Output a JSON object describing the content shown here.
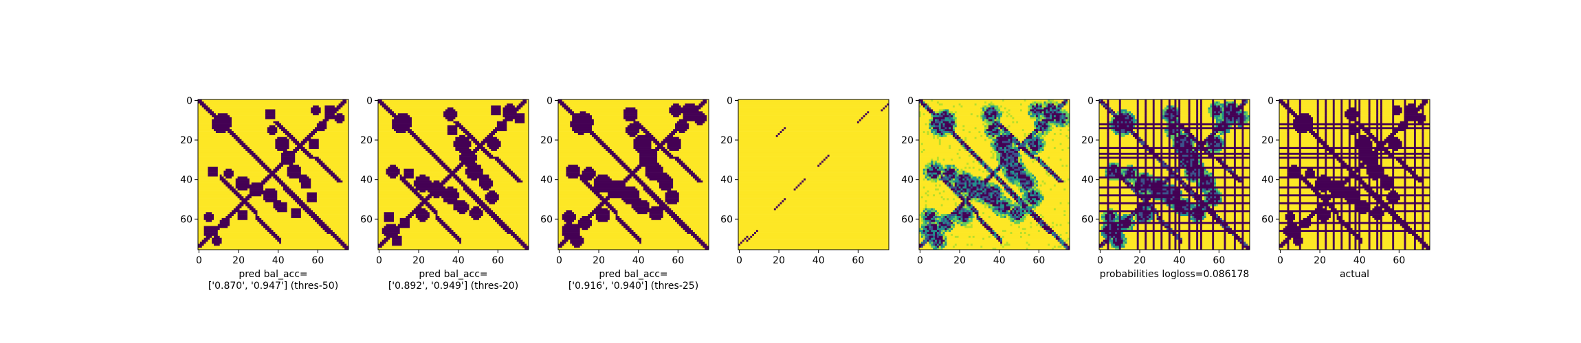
{
  "colors": {
    "low": "#440154",
    "mid1": "#3b528b",
    "mid2": "#21918c",
    "mid3": "#5ec962",
    "high": "#fde725"
  },
  "chart_data": [
    {
      "type": "heatmap",
      "variant": "binary",
      "size": 76,
      "xticks": [
        0,
        20,
        40,
        60
      ],
      "yticks": [
        0,
        20,
        40,
        60
      ],
      "xlim": [
        0,
        76
      ],
      "ylim": [
        76,
        0
      ],
      "caption_lines": [
        "pred bal_acc=",
        "['0.870', '0.947'] (thres-50)"
      ],
      "threshold": 50
    },
    {
      "type": "heatmap",
      "variant": "binary",
      "size": 76,
      "xticks": [
        0,
        20,
        40,
        60
      ],
      "yticks": [
        0,
        20,
        40,
        60
      ],
      "xlim": [
        0,
        76
      ],
      "ylim": [
        76,
        0
      ],
      "caption_lines": [
        "pred bal_acc=",
        "['0.892', '0.949'] (thres-20)"
      ],
      "threshold": 20
    },
    {
      "type": "heatmap",
      "variant": "binary",
      "size": 76,
      "xticks": [
        0,
        20,
        40,
        60
      ],
      "yticks": [
        0,
        20,
        40,
        60
      ],
      "xlim": [
        0,
        76
      ],
      "ylim": [
        76,
        0
      ],
      "caption_lines": [
        "pred bal_acc=",
        "['0.916', '0.940'] (thres-25)"
      ],
      "threshold": 25
    },
    {
      "type": "heatmap",
      "variant": "sparse",
      "size": 76,
      "xticks": [
        0,
        20,
        40,
        60
      ],
      "yticks": [
        0,
        20,
        40,
        60
      ],
      "xlim": [
        0,
        76
      ],
      "ylim": [
        76,
        0
      ],
      "caption_lines": []
    },
    {
      "type": "heatmap",
      "variant": "probability",
      "size": 76,
      "xticks": [
        0,
        20,
        40,
        60
      ],
      "yticks": [
        0,
        20,
        40,
        60
      ],
      "xlim": [
        0,
        76
      ],
      "ylim": [
        76,
        0
      ],
      "caption_lines": []
    },
    {
      "type": "heatmap",
      "variant": "probability-grid",
      "size": 76,
      "xticks": [
        0,
        20,
        40,
        60
      ],
      "yticks": [
        0,
        20,
        40,
        60
      ],
      "xlim": [
        0,
        76
      ],
      "ylim": [
        76,
        0
      ],
      "caption_lines": [
        "probabilities logloss=0.086178"
      ]
    },
    {
      "type": "heatmap",
      "variant": "actual-grid",
      "size": 76,
      "xticks": [
        0,
        20,
        40,
        60
      ],
      "yticks": [
        0,
        20,
        40,
        60
      ],
      "xlim": [
        0,
        76
      ],
      "ylim": [
        76,
        0
      ],
      "caption_lines": [
        "actual"
      ]
    }
  ]
}
